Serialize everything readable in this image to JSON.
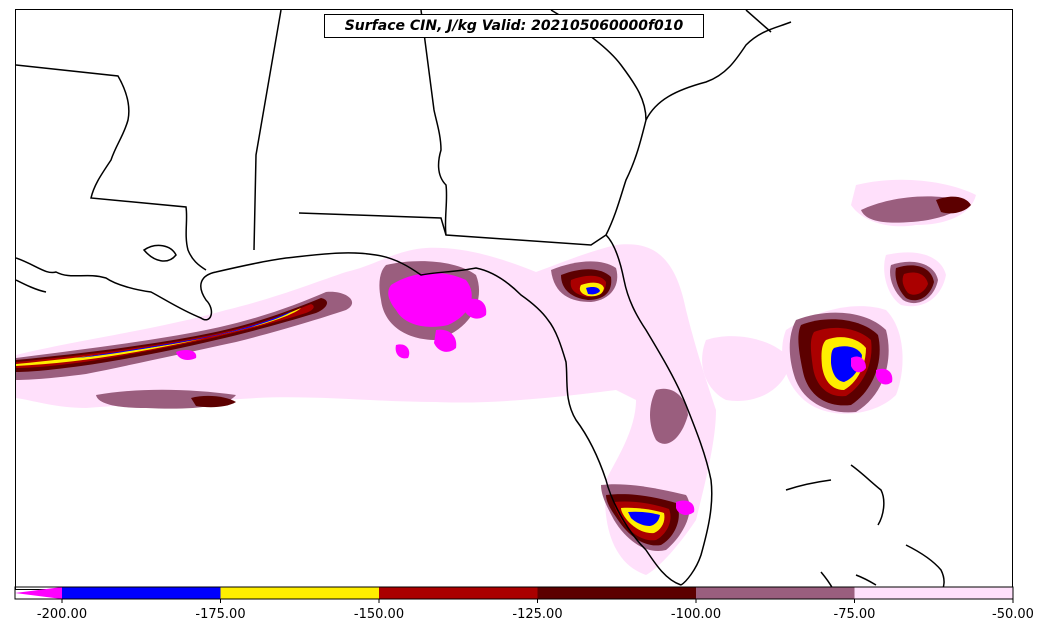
{
  "title": "Surface CIN, J/kg Valid: 202105060000f010",
  "colorbar": {
    "ticks": [
      "-200.00",
      "-175.00",
      "-150.00",
      "-125.00",
      "-100.00",
      "-75.00",
      "-50.00"
    ],
    "bins": [
      {
        "from": -200,
        "to": -175,
        "color": "#0000ff"
      },
      {
        "from": -175,
        "to": -150,
        "color": "#ffee00"
      },
      {
        "from": -150,
        "to": -125,
        "color": "#aa0000"
      },
      {
        "from": -125,
        "to": -100,
        "color": "#5c0000"
      },
      {
        "from": -100,
        "to": -75,
        "color": "#9a5e7e"
      },
      {
        "from": -75,
        "to": -50,
        "color": "#ffe0fb"
      }
    ],
    "under_color": "#ff00ff"
  },
  "legend_colors": {
    "below_-200": "#ff00ff",
    "-200_to_-175": "#0000ff",
    "-175_to_-150": "#ffee00",
    "-150_to_-125": "#aa0000",
    "-125_to_-100": "#5c0000",
    "-100_to_-75": "#9a5e7e",
    "-75_to_-50": "#ffe0fb"
  }
}
